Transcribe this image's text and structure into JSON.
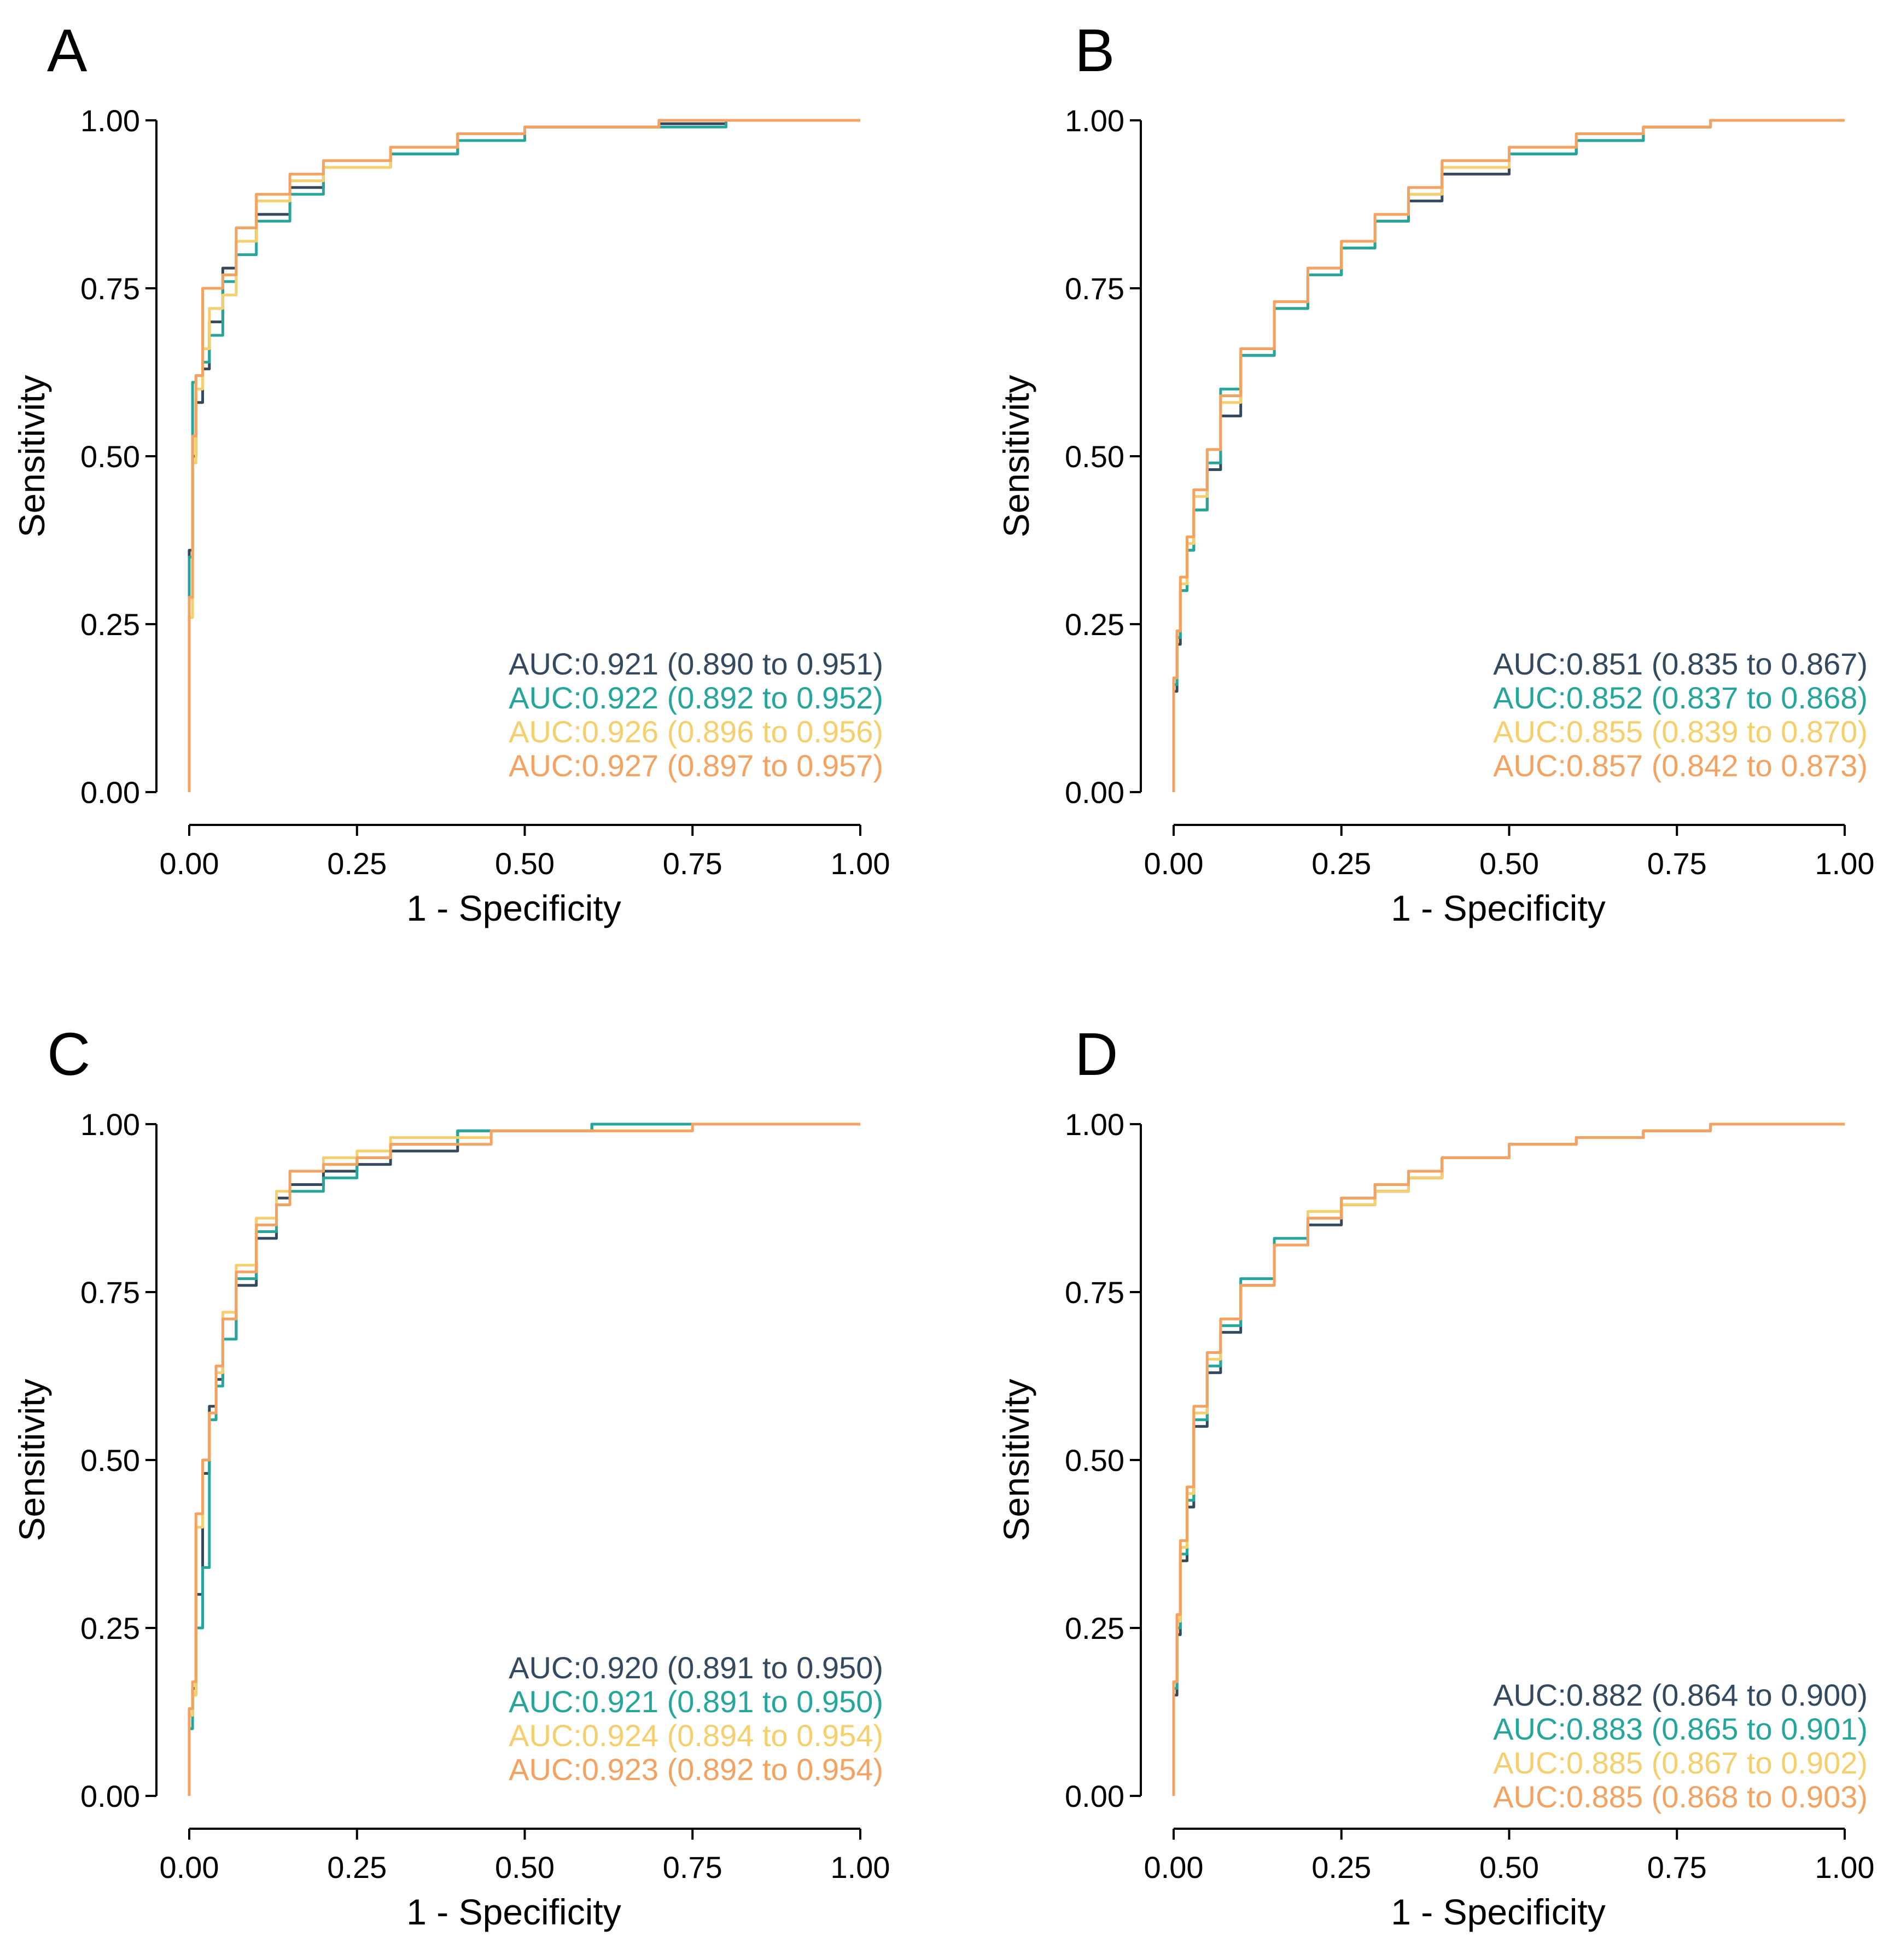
{
  "colors": [
    "#34495E",
    "#26A69A",
    "#F5CF6E",
    "#F4A261"
  ],
  "chart_data": [
    {
      "type": "line",
      "panel": "A",
      "xlabel": "1 - Specificity",
      "ylabel": "Sensitivity",
      "xlim": [
        0,
        1
      ],
      "ylim": [
        0,
        1
      ],
      "x_ticks": [
        "0.00",
        "0.25",
        "0.50",
        "0.75",
        "1.00"
      ],
      "y_ticks": [
        "0.00",
        "0.25",
        "0.50",
        "0.75",
        "1.00"
      ],
      "grid": false,
      "legend_placement": "bottom-right",
      "series": [
        {
          "label": "AUC:0.921 (0.890 to 0.951)",
          "x": [
            0,
            0.005,
            0.01,
            0.02,
            0.03,
            0.05,
            0.07,
            0.1,
            0.15,
            0.2,
            0.3,
            0.4,
            0.5,
            0.6,
            0.7,
            0.8,
            0.9,
            1
          ],
          "y": [
            0,
            0.36,
            0.5,
            0.58,
            0.63,
            0.7,
            0.78,
            0.82,
            0.86,
            0.9,
            0.93,
            0.95,
            0.98,
            0.99,
            0.99,
            0.995,
            1,
            1
          ]
        },
        {
          "label": "AUC:0.922 (0.892 to 0.952)",
          "x": [
            0,
            0.005,
            0.01,
            0.02,
            0.03,
            0.05,
            0.07,
            0.1,
            0.15,
            0.2,
            0.3,
            0.4,
            0.5,
            0.6,
            0.7,
            0.8,
            0.9,
            1
          ],
          "y": [
            0,
            0.35,
            0.61,
            0.62,
            0.64,
            0.68,
            0.76,
            0.8,
            0.85,
            0.89,
            0.93,
            0.95,
            0.97,
            0.99,
            0.99,
            0.99,
            1,
            1
          ]
        },
        {
          "label": "AUC:0.926 (0.896 to 0.956)",
          "x": [
            0,
            0.005,
            0.01,
            0.02,
            0.03,
            0.05,
            0.07,
            0.1,
            0.15,
            0.2,
            0.3,
            0.4,
            0.5,
            0.6,
            0.7,
            0.8,
            0.9,
            1
          ],
          "y": [
            0,
            0.26,
            0.49,
            0.6,
            0.66,
            0.72,
            0.74,
            0.82,
            0.88,
            0.91,
            0.93,
            0.96,
            0.98,
            0.99,
            0.99,
            1,
            1,
            1
          ]
        },
        {
          "label": "AUC:0.927 (0.897 to 0.957)",
          "x": [
            0,
            0.005,
            0.01,
            0.02,
            0.03,
            0.05,
            0.07,
            0.1,
            0.15,
            0.2,
            0.3,
            0.4,
            0.5,
            0.6,
            0.7,
            0.8,
            0.9,
            1
          ],
          "y": [
            0,
            0.29,
            0.53,
            0.62,
            0.75,
            0.75,
            0.77,
            0.84,
            0.89,
            0.92,
            0.94,
            0.96,
            0.98,
            0.99,
            0.99,
            1,
            1,
            1
          ]
        }
      ]
    },
    {
      "type": "line",
      "panel": "B",
      "xlabel": "1 - Specificity",
      "ylabel": "Sensitivity",
      "xlim": [
        0,
        1
      ],
      "ylim": [
        0,
        1
      ],
      "x_ticks": [
        "0.00",
        "0.25",
        "0.50",
        "0.75",
        "1.00"
      ],
      "y_ticks": [
        "0.00",
        "0.25",
        "0.50",
        "0.75",
        "1.00"
      ],
      "grid": false,
      "legend_placement": "bottom-right",
      "series": [
        {
          "label": "AUC:0.851 (0.835 to 0.867)",
          "x": [
            0,
            0.005,
            0.01,
            0.02,
            0.03,
            0.05,
            0.07,
            0.1,
            0.15,
            0.2,
            0.25,
            0.3,
            0.35,
            0.4,
            0.5,
            0.6,
            0.7,
            0.8,
            0.9,
            1
          ],
          "y": [
            0,
            0.15,
            0.22,
            0.3,
            0.36,
            0.42,
            0.48,
            0.56,
            0.65,
            0.72,
            0.77,
            0.81,
            0.85,
            0.88,
            0.92,
            0.95,
            0.97,
            0.99,
            1,
            1
          ]
        },
        {
          "label": "AUC:0.852 (0.837 to 0.868)",
          "x": [
            0,
            0.005,
            0.01,
            0.02,
            0.03,
            0.05,
            0.07,
            0.1,
            0.15,
            0.2,
            0.25,
            0.3,
            0.35,
            0.4,
            0.5,
            0.6,
            0.7,
            0.8,
            0.9,
            1
          ],
          "y": [
            0,
            0.16,
            0.23,
            0.3,
            0.36,
            0.42,
            0.49,
            0.6,
            0.65,
            0.72,
            0.77,
            0.81,
            0.85,
            0.89,
            0.93,
            0.95,
            0.97,
            0.99,
            1,
            1
          ]
        },
        {
          "label": "AUC:0.855 (0.839 to 0.870)",
          "x": [
            0,
            0.005,
            0.01,
            0.02,
            0.03,
            0.05,
            0.07,
            0.1,
            0.15,
            0.2,
            0.25,
            0.3,
            0.35,
            0.4,
            0.5,
            0.6,
            0.7,
            0.8,
            0.9,
            1
          ],
          "y": [
            0,
            0.17,
            0.24,
            0.31,
            0.37,
            0.44,
            0.51,
            0.58,
            0.66,
            0.73,
            0.78,
            0.82,
            0.86,
            0.89,
            0.93,
            0.96,
            0.98,
            0.99,
            1,
            1
          ]
        },
        {
          "label": "AUC:0.857 (0.842 to 0.873)",
          "x": [
            0,
            0.005,
            0.01,
            0.02,
            0.03,
            0.05,
            0.07,
            0.1,
            0.15,
            0.2,
            0.25,
            0.3,
            0.35,
            0.4,
            0.5,
            0.6,
            0.7,
            0.8,
            0.9,
            1
          ],
          "y": [
            0,
            0.17,
            0.24,
            0.32,
            0.38,
            0.45,
            0.51,
            0.59,
            0.66,
            0.73,
            0.78,
            0.82,
            0.86,
            0.9,
            0.94,
            0.96,
            0.98,
            0.99,
            1,
            1
          ]
        }
      ]
    },
    {
      "type": "line",
      "panel": "C",
      "xlabel": "1 - Specificity",
      "ylabel": "Sensitivity",
      "xlim": [
        0,
        1
      ],
      "ylim": [
        0,
        1
      ],
      "x_ticks": [
        "0.00",
        "0.25",
        "0.50",
        "0.75",
        "1.00"
      ],
      "y_ticks": [
        "0.00",
        "0.25",
        "0.50",
        "0.75",
        "1.00"
      ],
      "grid": false,
      "legend_placement": "bottom-right",
      "series": [
        {
          "label": "AUC:0.920 (0.891 to 0.950)",
          "x": [
            0,
            0.005,
            0.01,
            0.02,
            0.03,
            0.04,
            0.05,
            0.07,
            0.1,
            0.13,
            0.15,
            0.2,
            0.25,
            0.3,
            0.4,
            0.45,
            0.5,
            0.6,
            0.67,
            0.75,
            0.8,
            0.9,
            1
          ],
          "y": [
            0,
            0.12,
            0.16,
            0.3,
            0.48,
            0.58,
            0.62,
            0.68,
            0.76,
            0.83,
            0.89,
            0.91,
            0.93,
            0.94,
            0.96,
            0.99,
            0.99,
            0.99,
            1,
            1,
            1,
            1,
            1
          ]
        },
        {
          "label": "AUC:0.921 (0.891 to 0.950)",
          "x": [
            0,
            0.005,
            0.01,
            0.02,
            0.03,
            0.04,
            0.05,
            0.07,
            0.1,
            0.13,
            0.15,
            0.2,
            0.25,
            0.3,
            0.4,
            0.45,
            0.5,
            0.6,
            0.67,
            0.75,
            0.8,
            0.9,
            1
          ],
          "y": [
            0,
            0.1,
            0.15,
            0.25,
            0.34,
            0.56,
            0.61,
            0.68,
            0.77,
            0.84,
            0.88,
            0.9,
            0.92,
            0.95,
            0.97,
            0.99,
            0.99,
            0.99,
            1,
            1,
            1,
            1,
            1
          ]
        },
        {
          "label": "AUC:0.924 (0.894 to 0.954)",
          "x": [
            0,
            0.005,
            0.01,
            0.02,
            0.03,
            0.04,
            0.05,
            0.07,
            0.1,
            0.13,
            0.15,
            0.2,
            0.25,
            0.3,
            0.4,
            0.45,
            0.5,
            0.6,
            0.67,
            0.75,
            0.8,
            0.9,
            1
          ],
          "y": [
            0,
            0.12,
            0.15,
            0.4,
            0.5,
            0.57,
            0.63,
            0.72,
            0.79,
            0.86,
            0.9,
            0.93,
            0.95,
            0.96,
            0.98,
            0.98,
            0.99,
            0.99,
            0.99,
            0.99,
            1,
            1,
            1
          ]
        },
        {
          "label": "AUC:0.923 (0.892 to 0.954)",
          "x": [
            0,
            0.005,
            0.01,
            0.02,
            0.03,
            0.04,
            0.05,
            0.07,
            0.1,
            0.13,
            0.15,
            0.2,
            0.25,
            0.3,
            0.4,
            0.45,
            0.5,
            0.6,
            0.67,
            0.75,
            0.8,
            0.9,
            1
          ],
          "y": [
            0,
            0.13,
            0.17,
            0.42,
            0.5,
            0.57,
            0.64,
            0.71,
            0.78,
            0.85,
            0.88,
            0.93,
            0.94,
            0.95,
            0.97,
            0.97,
            0.99,
            0.99,
            0.99,
            0.99,
            1,
            1,
            1
          ]
        }
      ]
    },
    {
      "type": "line",
      "panel": "D",
      "xlabel": "1 - Specificity",
      "ylabel": "Sensitivity",
      "xlim": [
        0,
        1
      ],
      "ylim": [
        0,
        1
      ],
      "x_ticks": [
        "0.00",
        "0.25",
        "0.50",
        "0.75",
        "1.00"
      ],
      "y_ticks": [
        "0.00",
        "0.25",
        "0.50",
        "0.75",
        "1.00"
      ],
      "grid": false,
      "legend_placement": "bottom-right",
      "series": [
        {
          "label": "AUC:0.882 (0.864 to 0.900)",
          "x": [
            0,
            0.005,
            0.01,
            0.02,
            0.03,
            0.05,
            0.07,
            0.1,
            0.15,
            0.2,
            0.25,
            0.3,
            0.35,
            0.4,
            0.5,
            0.6,
            0.7,
            0.8,
            0.9,
            1
          ],
          "y": [
            0,
            0.15,
            0.24,
            0.35,
            0.43,
            0.55,
            0.63,
            0.69,
            0.76,
            0.82,
            0.85,
            0.88,
            0.9,
            0.92,
            0.95,
            0.97,
            0.98,
            0.99,
            1,
            1
          ]
        },
        {
          "label": "AUC:0.883 (0.865 to 0.901)",
          "x": [
            0,
            0.005,
            0.01,
            0.02,
            0.03,
            0.05,
            0.07,
            0.1,
            0.15,
            0.2,
            0.25,
            0.3,
            0.35,
            0.4,
            0.5,
            0.6,
            0.7,
            0.8,
            0.9,
            1
          ],
          "y": [
            0,
            0.16,
            0.25,
            0.36,
            0.44,
            0.56,
            0.64,
            0.7,
            0.77,
            0.83,
            0.86,
            0.89,
            0.91,
            0.93,
            0.95,
            0.97,
            0.98,
            0.99,
            1,
            1
          ]
        },
        {
          "label": "AUC:0.885 (0.867 to 0.902)",
          "x": [
            0,
            0.005,
            0.01,
            0.02,
            0.03,
            0.05,
            0.07,
            0.1,
            0.15,
            0.2,
            0.25,
            0.3,
            0.35,
            0.4,
            0.5,
            0.6,
            0.7,
            0.8,
            0.9,
            1
          ],
          "y": [
            0,
            0.17,
            0.26,
            0.37,
            0.45,
            0.57,
            0.65,
            0.71,
            0.76,
            0.82,
            0.87,
            0.88,
            0.9,
            0.92,
            0.95,
            0.97,
            0.98,
            0.99,
            1,
            1
          ]
        },
        {
          "label": "AUC:0.885 (0.868 to 0.903)",
          "x": [
            0,
            0.005,
            0.01,
            0.02,
            0.03,
            0.05,
            0.07,
            0.1,
            0.15,
            0.2,
            0.25,
            0.3,
            0.35,
            0.4,
            0.5,
            0.6,
            0.7,
            0.8,
            0.9,
            1
          ],
          "y": [
            0,
            0.17,
            0.27,
            0.38,
            0.46,
            0.58,
            0.66,
            0.71,
            0.76,
            0.82,
            0.86,
            0.89,
            0.91,
            0.93,
            0.95,
            0.97,
            0.98,
            0.99,
            1,
            1
          ]
        }
      ]
    }
  ]
}
